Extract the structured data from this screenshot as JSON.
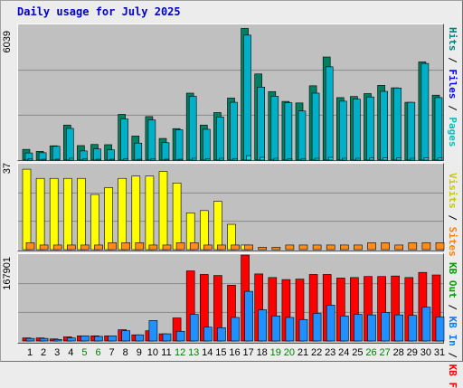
{
  "title": "Daily usage for July 2025",
  "max_labels": {
    "pages": "6039",
    "visits": "37",
    "kb": "167901"
  },
  "legend": {
    "panel1": [
      {
        "text": "Hits",
        "color": "#008080"
      },
      {
        "text": "Files",
        "color": "#0000ff"
      },
      {
        "text": "Pages",
        "color": "#00c0c0"
      }
    ],
    "panel2": [
      {
        "text": "Visits",
        "color": "#c8c800"
      },
      {
        "text": "Sites",
        "color": "#ff8000"
      }
    ],
    "panel3": [
      {
        "text": "KB Out",
        "color": "#00a000"
      },
      {
        "text": "KB In",
        "color": "#0080ff"
      },
      {
        "text": "KB F",
        "color": "#ff0000"
      }
    ],
    "separator": "/"
  },
  "colors": {
    "hits": "#008060",
    "files": "#00b0c8",
    "pages": "#00e0f0",
    "visits": "#ffff00",
    "sites": "#ff8c1a",
    "kb_f": "#ff0000",
    "kb_in": "#1e90ff",
    "weekend_label": "#008000",
    "day_label": "#000000"
  },
  "chart_data": {
    "type": "bar",
    "categories": [
      "1",
      "2",
      "3",
      "4",
      "5",
      "6",
      "7",
      "8",
      "9",
      "10",
      "11",
      "12",
      "13",
      "14",
      "15",
      "16",
      "17",
      "18",
      "19",
      "20",
      "21",
      "22",
      "23",
      "24",
      "25",
      "26",
      "27",
      "28",
      "29",
      "30",
      "31"
    ],
    "weekend_days": [
      5,
      6,
      12,
      13,
      19,
      20,
      26,
      27
    ],
    "panels": [
      {
        "id": "hits_files_pages",
        "ymax": 6039,
        "series": [
          {
            "name": "Hits",
            "values": [
              480,
              390,
              640,
              1570,
              650,
              700,
              690,
              2050,
              1080,
              1950,
              970,
              1410,
              3000,
              1570,
              2130,
              2780,
              5900,
              3860,
              3070,
              2630,
              2560,
              3330,
              4620,
              2800,
              2850,
              2980,
              3350,
              3240,
              2590,
              4400,
              2910
            ]
          },
          {
            "name": "Files",
            "values": [
              320,
              330,
              620,
              1420,
              410,
              500,
              460,
              1840,
              760,
              1800,
              780,
              1360,
              2860,
              1380,
              1930,
              2590,
              5600,
              3270,
              2860,
              2570,
              2200,
              3000,
              4180,
              2640,
              2730,
              2830,
              3080,
              3230,
              2590,
              4330,
              2800
            ]
          },
          {
            "name": "Pages",
            "values": [
              60,
              40,
              40,
              80,
              50,
              40,
              40,
              60,
              40,
              60,
              40,
              40,
              80,
              60,
              80,
              70,
              200,
              120,
              80,
              60,
              70,
              80,
              120,
              80,
              80,
              90,
              100,
              90,
              80,
              110,
              90
            ]
          }
        ]
      },
      {
        "id": "visits_sites",
        "ymax": 37,
        "series": [
          {
            "name": "Visits",
            "values": [
              35,
              31,
              31,
              31,
              31,
              24,
              27,
              31,
              32,
              32,
              34,
              29,
              16,
              17,
              21,
              11,
              2,
              0,
              0,
              0,
              0,
              0,
              0,
              0,
              0,
              0,
              0,
              0,
              0,
              0,
              0
            ]
          },
          {
            "name": "Sites",
            "values": [
              3,
              2,
              2,
              2,
              2,
              2,
              3,
              3,
              3,
              2,
              2,
              3,
              3,
              2,
              2,
              2,
              2,
              1,
              1,
              2,
              2,
              2,
              2,
              2,
              2,
              3,
              3,
              2,
              3,
              3,
              3
            ]
          }
        ]
      },
      {
        "id": "kb",
        "ymax": 167901,
        "series": [
          {
            "name": "KB F",
            "values": [
              6000,
              6000,
              4000,
              8000,
              10000,
              10000,
              10000,
              22000,
              12000,
              20000,
              14000,
              45000,
              137000,
              130000,
              128000,
              109000,
              167901,
              131000,
              124000,
              120000,
              121000,
              130000,
              130000,
              123000,
              124000,
              126000,
              126000,
              127000,
              124000,
              134000,
              129000
            ]
          },
          {
            "name": "KB In",
            "values": [
              5000,
              5000,
              3000,
              6000,
              10000,
              9000,
              10000,
              20000,
              12000,
              40000,
              14000,
              19000,
              52000,
              27000,
              26000,
              46000,
              97000,
              61000,
              49000,
              46000,
              42000,
              54000,
              70000,
              49000,
              52000,
              51000,
              56000,
              51000,
              50000,
              66000,
              47000
            ]
          }
        ]
      }
    ]
  }
}
